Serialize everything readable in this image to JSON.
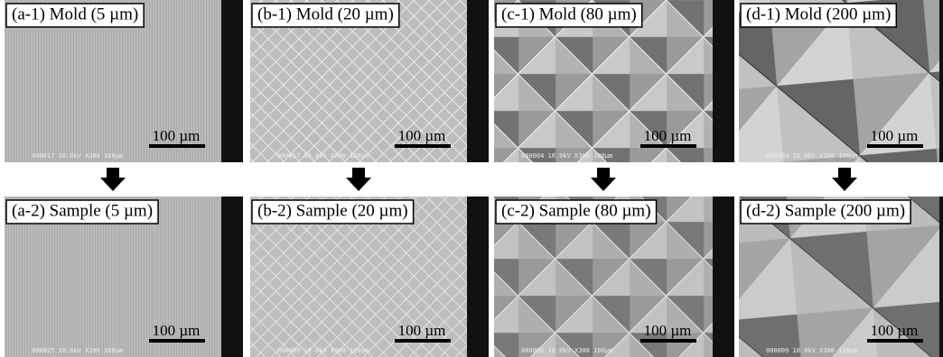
{
  "panels": [
    {
      "label": "(a-1) Mold (5 µm)",
      "scale": "100 µm",
      "footer": "000017 10.0kV X300 100µm"
    },
    {
      "label": "(b-1) Mold (20 µm)",
      "scale": "100 µm",
      "footer": "000017 10.0kV X300 100µm"
    },
    {
      "label": "(c-1) Mold (80 µm)",
      "scale": "100 µm",
      "footer": "000004 10.0kV X300 100µm"
    },
    {
      "label": "(d-1) Mold (200 µm)",
      "scale": "100 µm",
      "footer": "000003 10.0kV X300 100µm"
    },
    {
      "label": "(a-2) Sample (5 µm)",
      "scale": "100 µm",
      "footer": "000025 10.0kV X300 100µm"
    },
    {
      "label": "(b-2) Sample (20 µm)",
      "scale": "100 µm",
      "footer": "000009 10.0kV X300 100µm"
    },
    {
      "label": "(c-2) Sample (80 µm)",
      "scale": "100 µm",
      "footer": "000006 10.0kV X300 100µm"
    },
    {
      "label": "(d-2) Sample (200 µm)",
      "scale": "100 µm",
      "footer": "000009 10.0kV X300 100µm"
    }
  ]
}
